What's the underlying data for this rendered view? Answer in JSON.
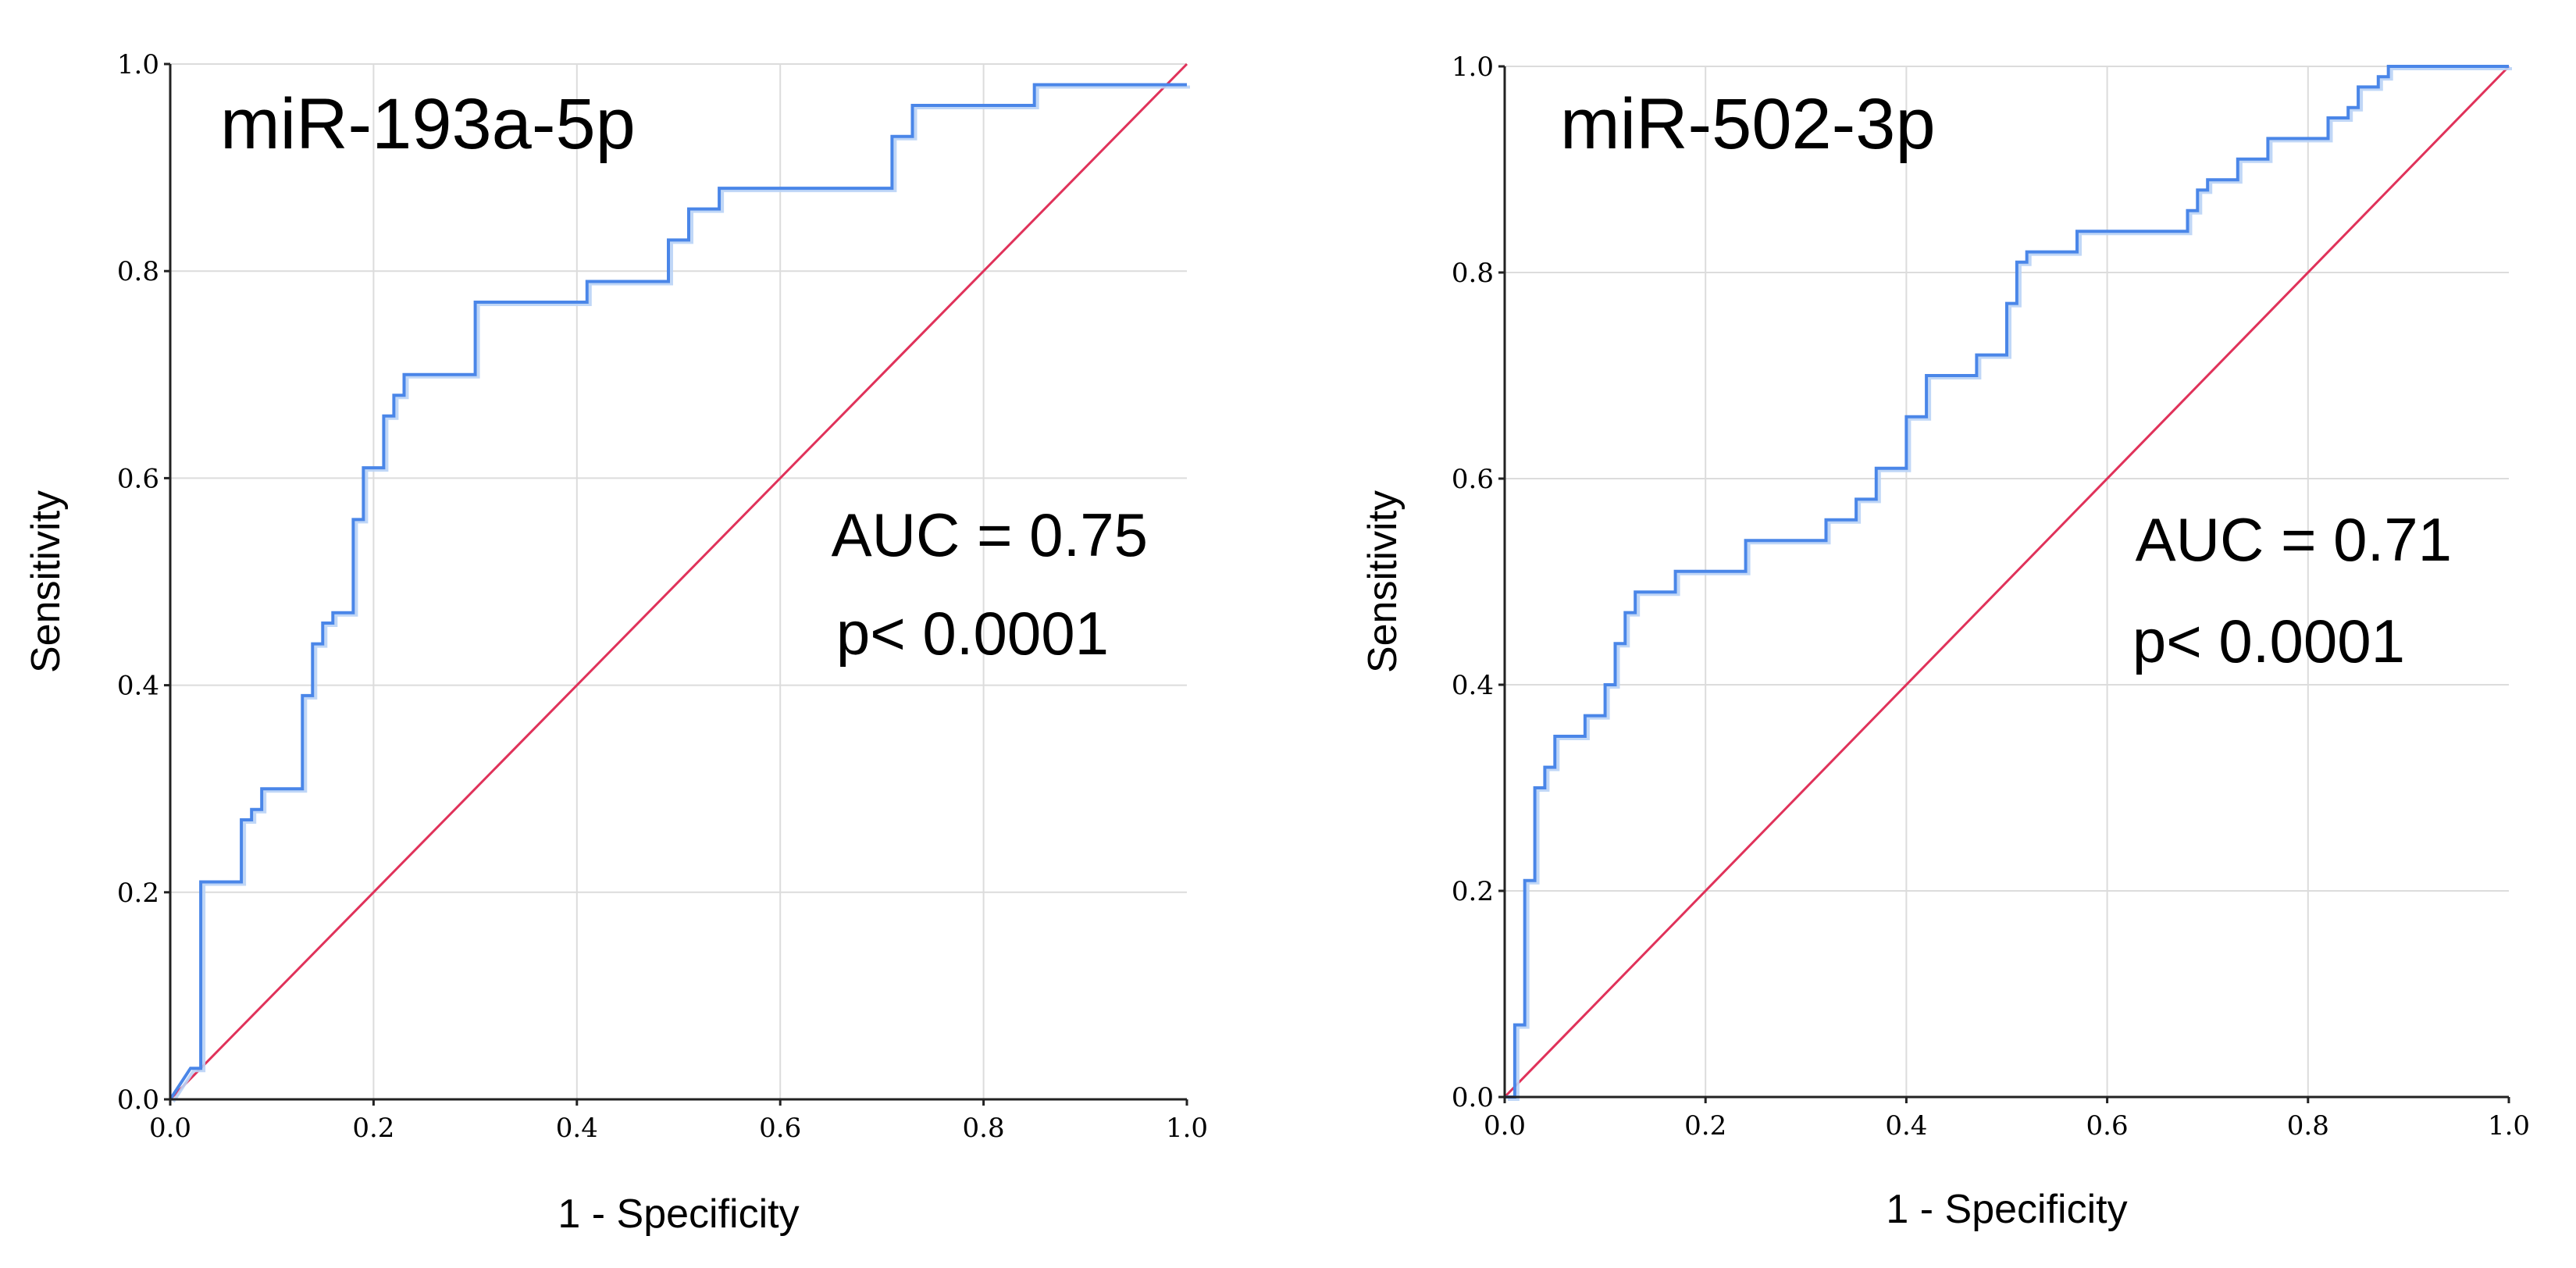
{
  "chart_data": [
    {
      "type": "line",
      "title": "miR-193a-5p",
      "xlabel": "1 - Specificity",
      "ylabel": "Sensitivity",
      "xlim": [
        0,
        1
      ],
      "ylim": [
        0,
        1
      ],
      "xticks": [
        "0.0",
        "0.2",
        "0.4",
        "0.6",
        "0.8",
        "1.0"
      ],
      "yticks": [
        "0.0",
        "0.2",
        "0.4",
        "0.6",
        "0.8",
        "1.0"
      ],
      "grid": true,
      "annotations": [
        "AUC = 0.75",
        "p< 0.0001"
      ],
      "series": [
        {
          "name": "ROC curve",
          "color": "#4a86e8",
          "shadow_color": "#b9d3f6",
          "x": [
            0,
            0.02,
            0.03,
            0.03,
            0.07,
            0.07,
            0.08,
            0.08,
            0.09,
            0.09,
            0.13,
            0.13,
            0.14,
            0.14,
            0.15,
            0.15,
            0.16,
            0.16,
            0.18,
            0.18,
            0.19,
            0.19,
            0.21,
            0.21,
            0.22,
            0.22,
            0.23,
            0.23,
            0.3,
            0.3,
            0.41,
            0.41,
            0.49,
            0.49,
            0.51,
            0.51,
            0.54,
            0.54,
            0.71,
            0.71,
            0.73,
            0.73,
            0.85,
            0.85,
            1
          ],
          "y": [
            0,
            0.03,
            0.03,
            0.21,
            0.21,
            0.27,
            0.27,
            0.28,
            0.28,
            0.3,
            0.3,
            0.39,
            0.39,
            0.44,
            0.44,
            0.46,
            0.46,
            0.47,
            0.47,
            0.56,
            0.56,
            0.61,
            0.61,
            0.66,
            0.66,
            0.68,
            0.68,
            0.7,
            0.7,
            0.77,
            0.77,
            0.79,
            0.79,
            0.83,
            0.83,
            0.86,
            0.86,
            0.88,
            0.88,
            0.93,
            0.93,
            0.96,
            0.96,
            0.98,
            0.98
          ]
        },
        {
          "name": "Reference line",
          "color": "#e0325a",
          "x": [
            0,
            1
          ],
          "y": [
            0,
            1
          ]
        }
      ]
    },
    {
      "type": "line",
      "title": "miR-502-3p",
      "xlabel": "1 - Specificity",
      "ylabel": "Sensitivity",
      "xlim": [
        0,
        1
      ],
      "ylim": [
        0,
        1
      ],
      "xticks": [
        "0.0",
        "0.2",
        "0.4",
        "0.6",
        "0.8",
        "1.0"
      ],
      "yticks": [
        "0.0",
        "0.2",
        "0.4",
        "0.6",
        "0.8",
        "1.0"
      ],
      "grid": true,
      "annotations": [
        "AUC = 0.71",
        "p< 0.0001"
      ],
      "series": [
        {
          "name": "ROC curve",
          "color": "#4a86e8",
          "shadow_color": "#b9d3f6",
          "x": [
            0,
            0.01,
            0.01,
            0.02,
            0.02,
            0.03,
            0.03,
            0.04,
            0.04,
            0.05,
            0.05,
            0.08,
            0.08,
            0.1,
            0.1,
            0.11,
            0.11,
            0.12,
            0.12,
            0.13,
            0.13,
            0.17,
            0.17,
            0.24,
            0.24,
            0.32,
            0.32,
            0.35,
            0.35,
            0.37,
            0.37,
            0.4,
            0.4,
            0.42,
            0.42,
            0.47,
            0.47,
            0.5,
            0.5,
            0.51,
            0.51,
            0.52,
            0.52,
            0.57,
            0.57,
            0.68,
            0.68,
            0.69,
            0.69,
            0.7,
            0.7,
            0.73,
            0.73,
            0.76,
            0.76,
            0.82,
            0.82,
            0.84,
            0.84,
            0.85,
            0.85,
            0.87,
            0.87,
            0.88,
            0.88,
            1
          ],
          "y": [
            0,
            0,
            0.07,
            0.07,
            0.21,
            0.21,
            0.3,
            0.3,
            0.32,
            0.32,
            0.35,
            0.35,
            0.37,
            0.37,
            0.4,
            0.4,
            0.44,
            0.44,
            0.47,
            0.47,
            0.49,
            0.49,
            0.51,
            0.51,
            0.54,
            0.54,
            0.56,
            0.56,
            0.58,
            0.58,
            0.61,
            0.61,
            0.66,
            0.66,
            0.7,
            0.7,
            0.72,
            0.72,
            0.77,
            0.77,
            0.81,
            0.81,
            0.82,
            0.82,
            0.84,
            0.84,
            0.86,
            0.86,
            0.88,
            0.88,
            0.89,
            0.89,
            0.91,
            0.91,
            0.93,
            0.93,
            0.95,
            0.95,
            0.96,
            0.96,
            0.98,
            0.98,
            0.99,
            0.99,
            1,
            1
          ]
        },
        {
          "name": "Reference line",
          "color": "#e0325a",
          "x": [
            0,
            1
          ],
          "y": [
            0,
            1
          ]
        }
      ]
    }
  ]
}
